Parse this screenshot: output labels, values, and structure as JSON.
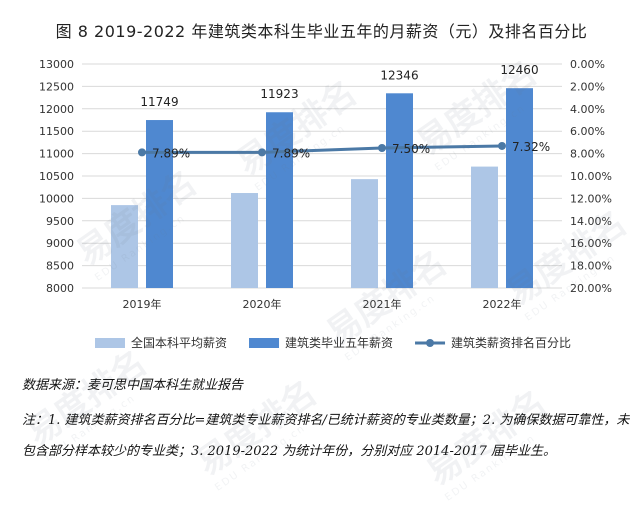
{
  "title": "图 8  2019-2022 年建筑类本科生毕业五年的月薪资（元）及排名百分比",
  "source_text": "数据来源：麦可思中国本科生就业报告",
  "note_text": "注：1. 建筑类薪资排名百分比=建筑类专业薪资排名/已统计薪资的专业类数量；2. 为确保数据可靠性，未包含部分样本较少的专业类；3. 2019-2022 为统计年份，分别对应 2014-2017 届毕业生。",
  "watermark": {
    "text": "易度排名",
    "subtext": "EDU Ranking.cn"
  },
  "chart_data": {
    "type": "bar",
    "categories": [
      "2019年",
      "2020年",
      "2021年",
      "2022年"
    ],
    "series": [
      {
        "name": "全国本科平均薪资",
        "type": "bar",
        "axis": "left",
        "color": "#adc6e6",
        "values": [
          9850,
          10120,
          10430,
          10710
        ]
      },
      {
        "name": "建筑类毕业五年薪资",
        "type": "bar",
        "axis": "left",
        "color": "#4f88d0",
        "values": [
          11749,
          11923,
          12346,
          12460
        ],
        "labels": [
          "11749",
          "11923",
          "12346",
          "12460"
        ]
      },
      {
        "name": "建筑类薪资排名百分比",
        "type": "line",
        "axis": "right",
        "color": "#4b79a6",
        "values": [
          7.89,
          7.89,
          7.5,
          7.32
        ],
        "labels": [
          "7.89%",
          "7.89%",
          "7.50%",
          "7.32%"
        ]
      }
    ],
    "y_left": {
      "min": 8000,
      "max": 13000,
      "step": 500,
      "ticks": [
        "8000",
        "8500",
        "9000",
        "9500",
        "10000",
        "10500",
        "11000",
        "11500",
        "12000",
        "12500",
        "13000"
      ]
    },
    "y_right": {
      "min": 0,
      "max": 20,
      "step": 2,
      "reversed": true,
      "ticks": [
        "0.00%",
        "2.00%",
        "4.00%",
        "6.00%",
        "8.00%",
        "10.00%",
        "12.00%",
        "14.00%",
        "16.00%",
        "18.00%",
        "20.00%"
      ]
    },
    "grid": true,
    "legend_position": "bottom"
  }
}
